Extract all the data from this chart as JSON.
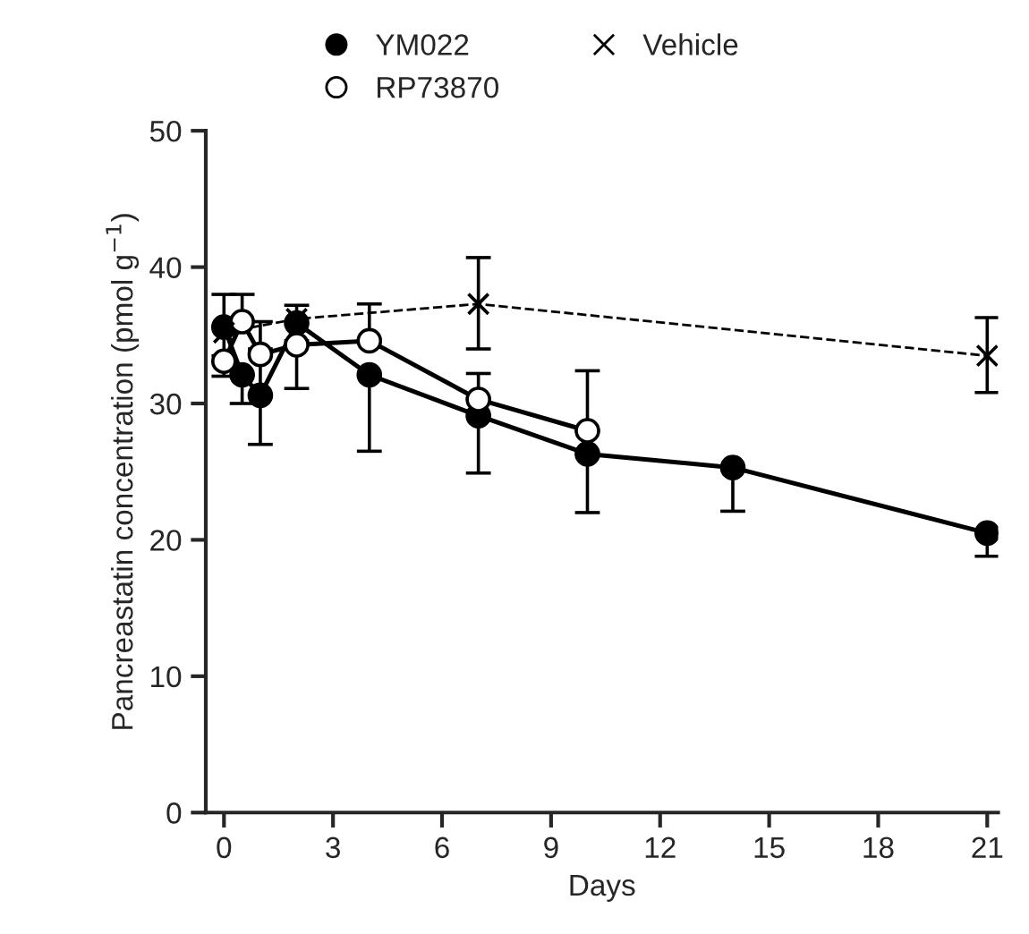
{
  "chart_data": {
    "type": "line",
    "xlabel": "Days",
    "ylabel": "Pancreastatin concentration (pmol g$^{−1}$)",
    "xlim": [
      -0.5,
      21.3
    ],
    "xticks": [
      0,
      3,
      6,
      9,
      12,
      15,
      18,
      21
    ],
    "ylim": [
      0,
      50
    ],
    "yticks": [
      0,
      10,
      20,
      30,
      40,
      50
    ],
    "grid": false,
    "legend": "top",
    "series": [
      {
        "name": "YM022",
        "color": "#000000",
        "marker": "circle",
        "line_style": "solid",
        "x": [
          0,
          0.5,
          1,
          2,
          4,
          7,
          10,
          14,
          21
        ],
        "values": [
          35.6,
          32.1,
          30.6,
          35.9,
          32.1,
          29.1,
          26.3,
          25.3,
          20.5
        ],
        "errors": [
          [
            33.5,
            38.0
          ],
          [
            30.0,
            32.1
          ],
          [
            27.0,
            34.0
          ],
          [
            34.6,
            37.2
          ],
          [
            26.5,
            32.1
          ],
          [
            24.9,
            29.1
          ],
          [
            22.0,
            26.3
          ],
          [
            22.1,
            25.3
          ],
          [
            18.8,
            20.5
          ]
        ]
      },
      {
        "name": "RP73870",
        "color": "#ffffff",
        "marker": "circle",
        "line_style": "solid",
        "x": [
          0,
          0.5,
          1,
          2,
          4,
          7,
          10
        ],
        "values": [
          33.1,
          36.0,
          33.6,
          34.3,
          34.6,
          30.3,
          28.0
        ],
        "errors": [
          [
            32.0,
            33.1
          ],
          [
            36.0,
            38.0
          ],
          [
            33.6,
            36.0
          ],
          [
            31.1,
            34.3
          ],
          [
            34.6,
            37.3
          ],
          [
            30.3,
            32.2
          ],
          [
            28.0,
            32.4
          ]
        ]
      },
      {
        "name": "Vehicle",
        "color": "#000000",
        "marker": "cross",
        "line_style": "dashed",
        "x": [
          0,
          2,
          7,
          21
        ],
        "values": [
          35.2,
          36.2,
          37.3,
          33.5
        ],
        "errors": [
          null,
          null,
          [
            34.0,
            40.7
          ],
          [
            30.8,
            36.3
          ]
        ]
      }
    ]
  }
}
